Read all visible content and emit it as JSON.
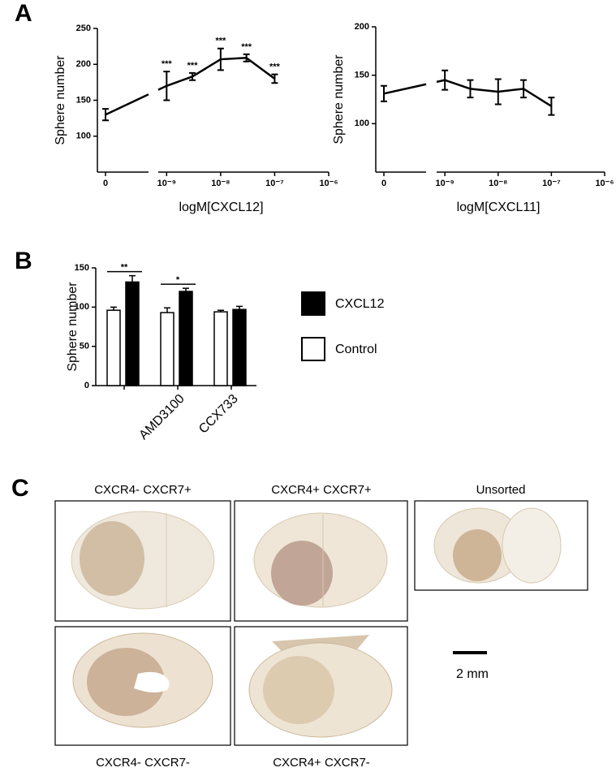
{
  "panel_labels": [
    "A",
    "B",
    "C"
  ],
  "chart_data": [
    {
      "type": "line",
      "xlabel": "logM[CXCL12]",
      "ylabel": "Sphere number",
      "ylim": [
        50,
        250
      ],
      "yticks": [
        100,
        150,
        200,
        250
      ],
      "xscale": "log",
      "xlim": [
        7e-10,
        1e-06
      ],
      "xticks": [
        {
          "value": 1e-09,
          "label": "10⁻⁹"
        },
        {
          "value": 1e-08,
          "label": "10⁻⁸"
        },
        {
          "value": 1e-07,
          "label": "10⁻⁷"
        },
        {
          "value": 1e-06,
          "label": "10⁻⁶"
        }
      ],
      "zero": {
        "label": "0",
        "value": 130,
        "error": 8
      },
      "x": [
        1e-09,
        3e-09,
        1e-08,
        3e-08,
        1e-07
      ],
      "values": [
        170,
        183,
        207,
        209,
        180
      ],
      "errors": [
        20,
        5,
        15,
        5,
        6
      ],
      "annotations": [
        "***",
        "***",
        "***",
        "***",
        "***"
      ],
      "color": "#000000"
    },
    {
      "type": "line",
      "xlabel": "logM[CXCL11]",
      "ylabel": "Sphere number",
      "ylim": [
        50,
        200
      ],
      "yticks": [
        100,
        150,
        200
      ],
      "xscale": "log",
      "xlim": [
        7e-10,
        1e-06
      ],
      "xticks": [
        {
          "value": 1e-09,
          "label": "10⁻⁹"
        },
        {
          "value": 1e-08,
          "label": "10⁻⁸"
        },
        {
          "value": 1e-07,
          "label": "10⁻⁷"
        },
        {
          "value": 1e-06,
          "label": "10⁻⁶"
        }
      ],
      "zero": {
        "label": "0",
        "value": 131,
        "error": 8
      },
      "x": [
        1e-09,
        3e-09,
        1e-08,
        3e-08,
        1e-07
      ],
      "values": [
        145,
        136,
        133,
        136,
        118
      ],
      "errors": [
        10,
        9,
        13,
        9,
        9
      ],
      "color": "#000000"
    },
    {
      "type": "bar",
      "ylabel": "Sphere number",
      "ylim": [
        0,
        150
      ],
      "yticks": [
        0,
        50,
        100,
        150
      ],
      "categories": [
        null,
        "AMD3100",
        "CCX733"
      ],
      "series": [
        {
          "name": "Control",
          "color": "#ffffff",
          "values": [
            96,
            93,
            94
          ],
          "errors": [
            4,
            6,
            2
          ]
        },
        {
          "name": "CXCL12",
          "color": "#000000",
          "values": [
            132,
            120,
            97
          ],
          "errors": [
            8,
            4,
            4
          ]
        }
      ],
      "significance": [
        "**",
        "*",
        null
      ]
    }
  ],
  "panel_c": {
    "images": [
      "CXCR4- CXCR7+",
      "CXCR4+ CXCR7+",
      "Unsorted",
      "CXCR4- CXCR7-",
      "CXCR4+ CXCR7-"
    ],
    "scale_bar": "2 mm"
  }
}
